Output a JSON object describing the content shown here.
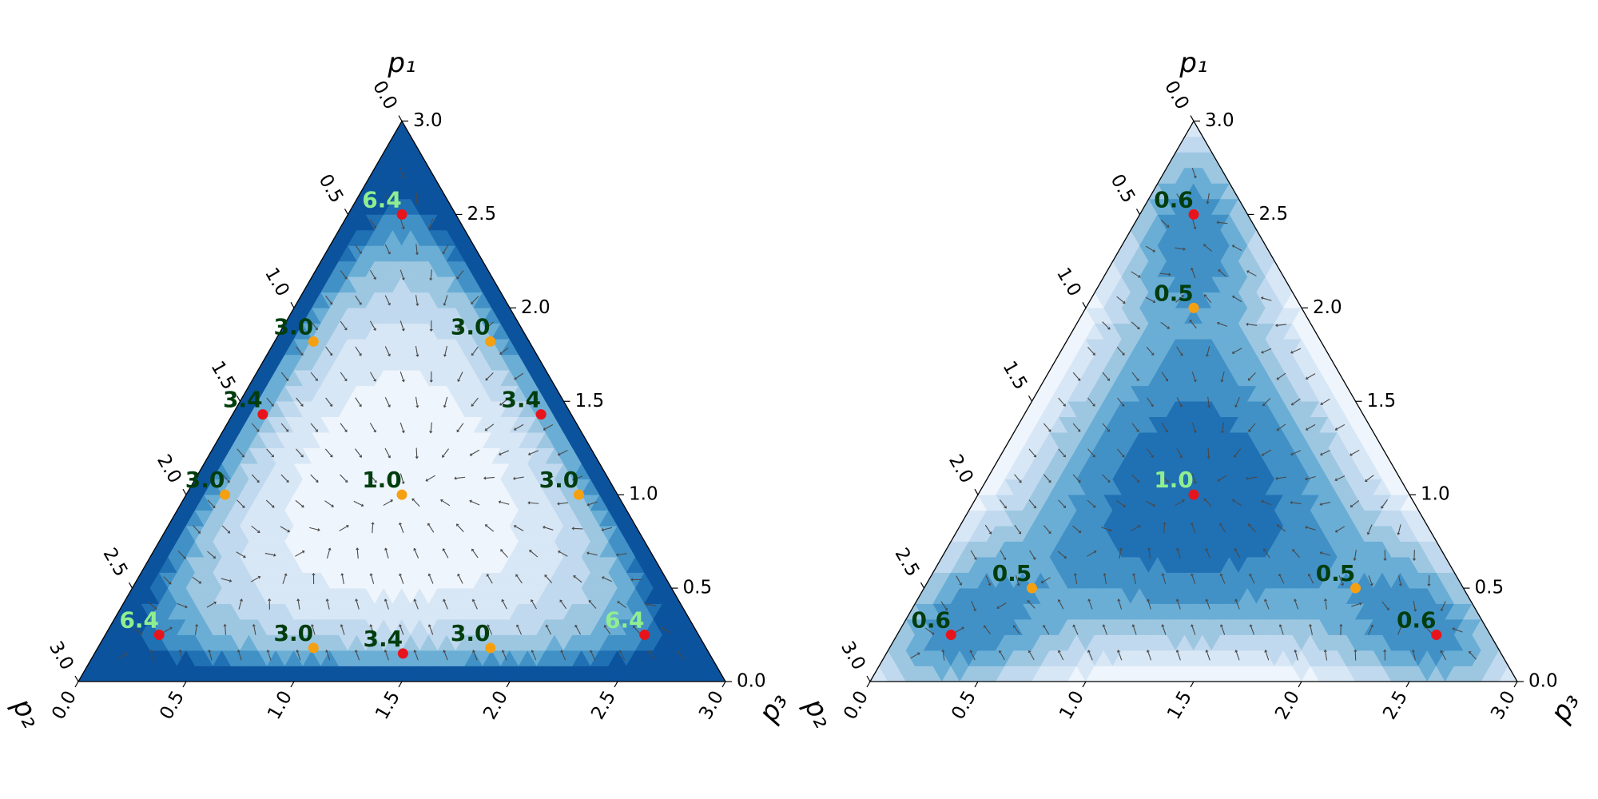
{
  "chart_data": [
    {
      "type": "ternary",
      "lim": [
        0,
        3
      ],
      "axes": [
        {
          "label": "p₁",
          "ticks": [
            {
              "value": 0,
              "label": "0.0"
            },
            {
              "value": 0.5,
              "label": "0.5"
            },
            {
              "value": 1,
              "label": "1.0"
            },
            {
              "value": 1.5,
              "label": "1.5"
            },
            {
              "value": 2,
              "label": "2.0"
            },
            {
              "value": 2.5,
              "label": "2.5"
            },
            {
              "value": 3,
              "label": "3.0"
            }
          ]
        },
        {
          "label": "p₂",
          "ticks": [
            {
              "value": 0,
              "label": "0.0"
            },
            {
              "value": 0.5,
              "label": "0.5"
            },
            {
              "value": 1,
              "label": "1.0"
            },
            {
              "value": 1.5,
              "label": "1.5"
            },
            {
              "value": 2,
              "label": "2.0"
            },
            {
              "value": 2.5,
              "label": "2.5"
            },
            {
              "value": 3,
              "label": "3.0"
            }
          ]
        },
        {
          "label": "p₃",
          "ticks": [
            {
              "value": 0,
              "label": "0.0"
            },
            {
              "value": 0.5,
              "label": "0.5"
            },
            {
              "value": 1,
              "label": "1.0"
            },
            {
              "value": 1.5,
              "label": "1.5"
            },
            {
              "value": 2,
              "label": "2.0"
            },
            {
              "value": 2.5,
              "label": "2.5"
            },
            {
              "value": 3,
              "label": "3.0"
            }
          ]
        }
      ],
      "points": {
        "p1": [
          2.5,
          0.25,
          0.25,
          1.43,
          1.43,
          0.15,
          1.82,
          1.82,
          1,
          1,
          0.18,
          0.18,
          1
        ],
        "p2": [
          0.25,
          2.5,
          0.25,
          1.43,
          0.14,
          1.43,
          1,
          0.18,
          1.82,
          0.18,
          1.82,
          1,
          1
        ],
        "p3": [
          0.25,
          0.25,
          2.5,
          0.14,
          1.43,
          1.43,
          0.18,
          1,
          0.18,
          1.82,
          1,
          1.82,
          1
        ],
        "values": [
          6.4,
          6.4,
          6.4,
          3.4,
          3.4,
          3.4,
          3.0,
          3.0,
          3.0,
          3.0,
          3.0,
          3.0,
          1.0
        ],
        "value_labels": [
          "6.4",
          "6.4",
          "6.4",
          "3.4",
          "3.4",
          "3.4",
          "3.0",
          "3.0",
          "3.0",
          "3.0",
          "3.0",
          "3.0",
          "1.0"
        ],
        "colors": [
          "#e8141c",
          "#e8141c",
          "#e8141c",
          "#e8141c",
          "#e8141c",
          "#e8141c",
          "#f5a011",
          "#f5a011",
          "#f5a011",
          "#f5a011",
          "#f5a011",
          "#f5a011",
          "#f5a011"
        ],
        "label_colors": [
          "#90ee90",
          "#90ee90",
          "#90ee90",
          "#013d0d",
          "#013d0d",
          "#013d0d",
          "#013d0d",
          "#013d0d",
          "#013d0d",
          "#013d0d",
          "#013d0d",
          "#013d0d",
          "#013d0d"
        ]
      }
    },
    {
      "type": "ternary",
      "lim": [
        0,
        3
      ],
      "axes": [
        {
          "label": "p₁",
          "ticks": [
            {
              "value": 0,
              "label": "0.0"
            },
            {
              "value": 0.5,
              "label": "0.5"
            },
            {
              "value": 1,
              "label": "1.0"
            },
            {
              "value": 1.5,
              "label": "1.5"
            },
            {
              "value": 2,
              "label": "2.0"
            },
            {
              "value": 2.5,
              "label": "2.5"
            },
            {
              "value": 3,
              "label": "3.0"
            }
          ]
        },
        {
          "label": "p₂",
          "ticks": [
            {
              "value": 0,
              "label": "0.0"
            },
            {
              "value": 0.5,
              "label": "0.5"
            },
            {
              "value": 1,
              "label": "1.0"
            },
            {
              "value": 1.5,
              "label": "1.5"
            },
            {
              "value": 2,
              "label": "2.0"
            },
            {
              "value": 2.5,
              "label": "2.5"
            },
            {
              "value": 3,
              "label": "3.0"
            }
          ]
        },
        {
          "label": "p₃",
          "ticks": [
            {
              "value": 0,
              "label": "0.0"
            },
            {
              "value": 0.5,
              "label": "0.5"
            },
            {
              "value": 1,
              "label": "1.0"
            },
            {
              "value": 1.5,
              "label": "1.5"
            },
            {
              "value": 2,
              "label": "2.0"
            },
            {
              "value": 2.5,
              "label": "2.5"
            },
            {
              "value": 3,
              "label": "3.0"
            }
          ]
        }
      ],
      "points": {
        "p1": [
          2.5,
          2,
          1,
          0.5,
          0.25,
          0.5,
          0.25
        ],
        "p2": [
          0.25,
          0.5,
          1,
          2,
          2.5,
          0.5,
          0.25
        ],
        "p3": [
          0.25,
          0.5,
          1,
          0.5,
          0.25,
          2,
          2.5
        ],
        "values": [
          0.6,
          0.5,
          1.0,
          0.5,
          0.6,
          0.5,
          0.6
        ],
        "value_labels": [
          "0.6",
          "0.5",
          "1.0",
          "0.5",
          "0.6",
          "0.5",
          "0.6"
        ],
        "colors": [
          "#e8141c",
          "#f5a011",
          "#e8141c",
          "#f5a011",
          "#e8141c",
          "#f5a011",
          "#e8141c"
        ],
        "label_colors": [
          "#013d0d",
          "#013d0d",
          "#90ee90",
          "#013d0d",
          "#013d0d",
          "#013d0d",
          "#013d0d"
        ]
      }
    }
  ]
}
